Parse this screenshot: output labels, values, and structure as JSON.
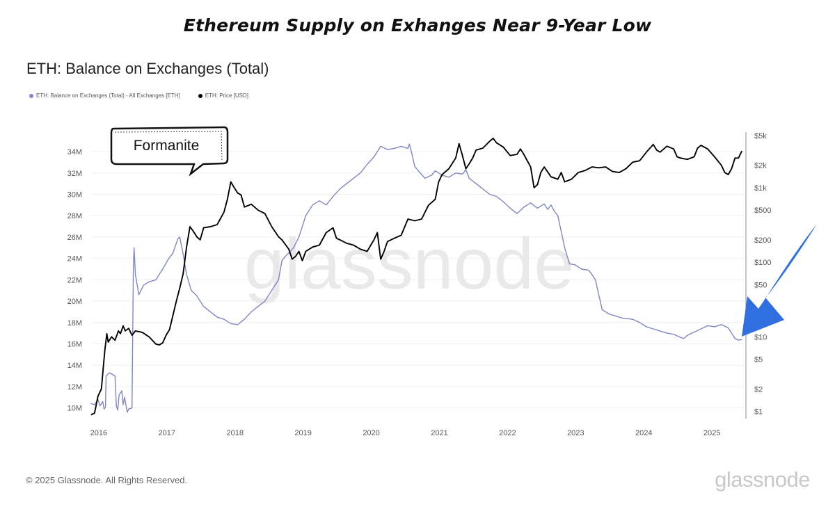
{
  "headline": "Ethereum Supply on Exhanges Near 9-Year Low",
  "chart_title": "ETH: Balance on Exchanges (Total)",
  "annotation_label": "Formanite",
  "watermark": "glassnode",
  "copyright": "© 2025 Glassnode. All Rights Reserved.",
  "brand": "glassnode",
  "colors": {
    "balance": "#7f86c6",
    "price": "#000000",
    "arrow": "#2f6fe0"
  },
  "chart_data": {
    "type": "line",
    "title": "ETH: Balance on Exchanges (Total)",
    "xlabel": "",
    "ylabel": "",
    "x_ticks": [
      "2016",
      "2017",
      "2018",
      "2019",
      "2020",
      "2021",
      "2022",
      "2023",
      "2024",
      "2025"
    ],
    "y_ticks": [
      "10M",
      "12M",
      "14M",
      "16M",
      "18M",
      "20M",
      "22M",
      "24M",
      "26M",
      "28M",
      "30M",
      "32M",
      "34M"
    ],
    "y2_ticks": [
      "$1",
      "$2",
      "$5",
      "$10",
      "$50",
      "$100",
      "$200",
      "$500",
      "$1k",
      "$2k",
      "$5k"
    ],
    "ylim": [
      9,
      35.5
    ],
    "y2lim": [
      0.8,
      5000
    ],
    "y2_scale": "log",
    "grid": true,
    "legend_position": "top-left",
    "series": [
      {
        "name": "ETH: Balance on Exchanges (Total) - All Exchanges [ETH]",
        "axis": "left",
        "points": [
          [
            2015.95,
            10.4
          ],
          [
            2016.0,
            10.3
          ],
          [
            2016.05,
            10.8
          ],
          [
            2016.08,
            10.2
          ],
          [
            2016.12,
            10.6
          ],
          [
            2016.14,
            9.9
          ],
          [
            2016.16,
            10.1
          ],
          [
            2016.17,
            13.0
          ],
          [
            2016.22,
            13.3
          ],
          [
            2016.3,
            13.0
          ],
          [
            2016.32,
            10.2
          ],
          [
            2016.34,
            9.8
          ],
          [
            2016.36,
            11.2
          ],
          [
            2016.4,
            11.6
          ],
          [
            2016.42,
            10.3
          ],
          [
            2016.44,
            11.0
          ],
          [
            2016.48,
            9.6
          ],
          [
            2016.5,
            9.9
          ],
          [
            2016.55,
            10.0
          ],
          [
            2016.57,
            23.4
          ],
          [
            2016.58,
            25.0
          ],
          [
            2016.6,
            22.5
          ],
          [
            2016.65,
            20.6
          ],
          [
            2016.72,
            21.5
          ],
          [
            2016.8,
            21.8
          ],
          [
            2016.9,
            22.0
          ],
          [
            2017.0,
            23.0
          ],
          [
            2017.08,
            23.9
          ],
          [
            2017.15,
            24.5
          ],
          [
            2017.22,
            25.8
          ],
          [
            2017.25,
            26.0
          ],
          [
            2017.3,
            24.4
          ],
          [
            2017.35,
            22.5
          ],
          [
            2017.42,
            21.0
          ],
          [
            2017.5,
            20.5
          ],
          [
            2017.6,
            19.5
          ],
          [
            2017.7,
            19.0
          ],
          [
            2017.8,
            18.5
          ],
          [
            2017.9,
            18.3
          ],
          [
            2018.0,
            17.9
          ],
          [
            2018.1,
            17.8
          ],
          [
            2018.2,
            18.3
          ],
          [
            2018.3,
            19.0
          ],
          [
            2018.4,
            19.5
          ],
          [
            2018.5,
            20.0
          ],
          [
            2018.6,
            21.0
          ],
          [
            2018.7,
            22.0
          ],
          [
            2018.75,
            23.8
          ],
          [
            2018.8,
            24.2
          ],
          [
            2018.85,
            24.5
          ],
          [
            2018.92,
            25.0
          ],
          [
            2019.0,
            26.0
          ],
          [
            2019.1,
            28.0
          ],
          [
            2019.2,
            29.0
          ],
          [
            2019.3,
            29.4
          ],
          [
            2019.4,
            29.0
          ],
          [
            2019.5,
            29.8
          ],
          [
            2019.6,
            30.5
          ],
          [
            2019.7,
            31.0
          ],
          [
            2019.8,
            31.5
          ],
          [
            2019.9,
            32.0
          ],
          [
            2020.0,
            32.8
          ],
          [
            2020.1,
            33.5
          ],
          [
            2020.2,
            34.5
          ],
          [
            2020.3,
            34.2
          ],
          [
            2020.4,
            34.3
          ],
          [
            2020.5,
            34.5
          ],
          [
            2020.6,
            34.3
          ],
          [
            2020.62,
            34.7
          ],
          [
            2020.65,
            34.0
          ],
          [
            2020.7,
            32.6
          ],
          [
            2020.78,
            32.0
          ],
          [
            2020.85,
            31.5
          ],
          [
            2020.95,
            31.8
          ],
          [
            2021.0,
            32.2
          ],
          [
            2021.1,
            31.8
          ],
          [
            2021.2,
            31.6
          ],
          [
            2021.3,
            32.0
          ],
          [
            2021.4,
            31.9
          ],
          [
            2021.45,
            32.3
          ],
          [
            2021.5,
            31.5
          ],
          [
            2021.6,
            31.0
          ],
          [
            2021.7,
            30.5
          ],
          [
            2021.8,
            30.0
          ],
          [
            2021.9,
            29.8
          ],
          [
            2022.0,
            29.3
          ],
          [
            2022.1,
            28.7
          ],
          [
            2022.2,
            28.2
          ],
          [
            2022.3,
            28.8
          ],
          [
            2022.4,
            29.2
          ],
          [
            2022.5,
            28.7
          ],
          [
            2022.6,
            29.1
          ],
          [
            2022.65,
            28.6
          ],
          [
            2022.7,
            29.0
          ],
          [
            2022.75,
            28.4
          ],
          [
            2022.8,
            28.0
          ],
          [
            2022.9,
            25.0
          ],
          [
            2022.97,
            23.5
          ],
          [
            2023.05,
            23.4
          ],
          [
            2023.15,
            23.0
          ],
          [
            2023.25,
            22.9
          ],
          [
            2023.3,
            22.5
          ],
          [
            2023.35,
            22.0
          ],
          [
            2023.45,
            19.2
          ],
          [
            2023.55,
            18.8
          ],
          [
            2023.65,
            18.6
          ],
          [
            2023.75,
            18.4
          ],
          [
            2023.9,
            18.3
          ],
          [
            2024.0,
            18.0
          ],
          [
            2024.1,
            17.6
          ],
          [
            2024.2,
            17.4
          ],
          [
            2024.3,
            17.2
          ],
          [
            2024.4,
            17.0
          ],
          [
            2024.5,
            16.9
          ],
          [
            2024.6,
            16.6
          ],
          [
            2024.65,
            16.5
          ],
          [
            2024.7,
            16.8
          ],
          [
            2024.8,
            17.1
          ],
          [
            2024.9,
            17.4
          ],
          [
            2025.0,
            17.7
          ],
          [
            2025.1,
            17.6
          ],
          [
            2025.2,
            17.8
          ],
          [
            2025.3,
            17.5
          ],
          [
            2025.35,
            17.0
          ],
          [
            2025.4,
            16.5
          ],
          [
            2025.45,
            16.35
          ],
          [
            2025.5,
            16.4
          ]
        ]
      },
      {
        "name": "ETH: Price [USD]",
        "axis": "right",
        "points": [
          [
            2015.95,
            0.9
          ],
          [
            2016.0,
            0.95
          ],
          [
            2016.05,
            1.6
          ],
          [
            2016.1,
            2.0
          ],
          [
            2016.15,
            6.5
          ],
          [
            2016.18,
            11
          ],
          [
            2016.2,
            8.5
          ],
          [
            2016.25,
            10
          ],
          [
            2016.3,
            9
          ],
          [
            2016.35,
            12
          ],
          [
            2016.38,
            11
          ],
          [
            2016.42,
            14
          ],
          [
            2016.45,
            12
          ],
          [
            2016.5,
            13
          ],
          [
            2016.55,
            10.5
          ],
          [
            2016.6,
            12
          ],
          [
            2016.7,
            11.5
          ],
          [
            2016.8,
            10
          ],
          [
            2016.9,
            8
          ],
          [
            2016.95,
            7.8
          ],
          [
            2017.0,
            8.3
          ],
          [
            2017.05,
            10.5
          ],
          [
            2017.1,
            12.5
          ],
          [
            2017.2,
            30
          ],
          [
            2017.25,
            45
          ],
          [
            2017.3,
            70
          ],
          [
            2017.35,
            160
          ],
          [
            2017.4,
            300
          ],
          [
            2017.45,
            260
          ],
          [
            2017.5,
            220
          ],
          [
            2017.55,
            200
          ],
          [
            2017.6,
            290
          ],
          [
            2017.7,
            300
          ],
          [
            2017.8,
            320
          ],
          [
            2017.9,
            470
          ],
          [
            2017.95,
            700
          ],
          [
            2018.0,
            1200
          ],
          [
            2018.05,
            1000
          ],
          [
            2018.1,
            850
          ],
          [
            2018.15,
            800
          ],
          [
            2018.2,
            550
          ],
          [
            2018.3,
            600
          ],
          [
            2018.4,
            500
          ],
          [
            2018.5,
            450
          ],
          [
            2018.6,
            300
          ],
          [
            2018.7,
            220
          ],
          [
            2018.75,
            200
          ],
          [
            2018.85,
            150
          ],
          [
            2018.9,
            110
          ],
          [
            2018.95,
            120
          ],
          [
            2019.0,
            140
          ],
          [
            2019.05,
            105
          ],
          [
            2019.1,
            140
          ],
          [
            2019.2,
            160
          ],
          [
            2019.3,
            170
          ],
          [
            2019.4,
            250
          ],
          [
            2019.5,
            290
          ],
          [
            2019.55,
            210
          ],
          [
            2019.6,
            200
          ],
          [
            2019.7,
            180
          ],
          [
            2019.8,
            170
          ],
          [
            2019.9,
            150
          ],
          [
            2020.0,
            140
          ],
          [
            2020.1,
            200
          ],
          [
            2020.15,
            250
          ],
          [
            2020.2,
            110
          ],
          [
            2020.25,
            140
          ],
          [
            2020.3,
            190
          ],
          [
            2020.4,
            210
          ],
          [
            2020.5,
            230
          ],
          [
            2020.6,
            380
          ],
          [
            2020.7,
            360
          ],
          [
            2020.8,
            380
          ],
          [
            2020.9,
            580
          ],
          [
            2021.0,
            700
          ],
          [
            2021.05,
            1200
          ],
          [
            2021.1,
            1500
          ],
          [
            2021.2,
            1800
          ],
          [
            2021.3,
            2500
          ],
          [
            2021.35,
            3900
          ],
          [
            2021.4,
            2700
          ],
          [
            2021.45,
            1800
          ],
          [
            2021.5,
            2100
          ],
          [
            2021.55,
            2500
          ],
          [
            2021.6,
            3200
          ],
          [
            2021.7,
            3400
          ],
          [
            2021.8,
            4200
          ],
          [
            2021.85,
            4600
          ],
          [
            2021.9,
            4000
          ],
          [
            2022.0,
            3500
          ],
          [
            2022.1,
            2700
          ],
          [
            2022.2,
            2800
          ],
          [
            2022.25,
            3300
          ],
          [
            2022.3,
            2800
          ],
          [
            2022.4,
            1900
          ],
          [
            2022.45,
            1000
          ],
          [
            2022.5,
            1100
          ],
          [
            2022.55,
            1600
          ],
          [
            2022.6,
            1900
          ],
          [
            2022.7,
            1400
          ],
          [
            2022.8,
            1300
          ],
          [
            2022.85,
            1600
          ],
          [
            2022.9,
            1200
          ],
          [
            2023.0,
            1300
          ],
          [
            2023.1,
            1600
          ],
          [
            2023.2,
            1700
          ],
          [
            2023.3,
            1900
          ],
          [
            2023.4,
            1850
          ],
          [
            2023.5,
            1900
          ],
          [
            2023.6,
            1650
          ],
          [
            2023.7,
            1600
          ],
          [
            2023.8,
            1800
          ],
          [
            2023.9,
            2200
          ],
          [
            2024.0,
            2300
          ],
          [
            2024.1,
            3000
          ],
          [
            2024.2,
            3800
          ],
          [
            2024.25,
            3200
          ],
          [
            2024.3,
            3000
          ],
          [
            2024.4,
            3600
          ],
          [
            2024.5,
            3300
          ],
          [
            2024.55,
            2600
          ],
          [
            2024.6,
            2500
          ],
          [
            2024.7,
            2400
          ],
          [
            2024.8,
            2600
          ],
          [
            2024.85,
            3400
          ],
          [
            2024.9,
            3700
          ],
          [
            2025.0,
            3300
          ],
          [
            2025.1,
            2600
          ],
          [
            2025.2,
            2000
          ],
          [
            2025.25,
            1600
          ],
          [
            2025.3,
            1500
          ],
          [
            2025.35,
            1800
          ],
          [
            2025.4,
            2500
          ],
          [
            2025.45,
            2500
          ],
          [
            2025.5,
            3100
          ]
        ]
      }
    ]
  }
}
